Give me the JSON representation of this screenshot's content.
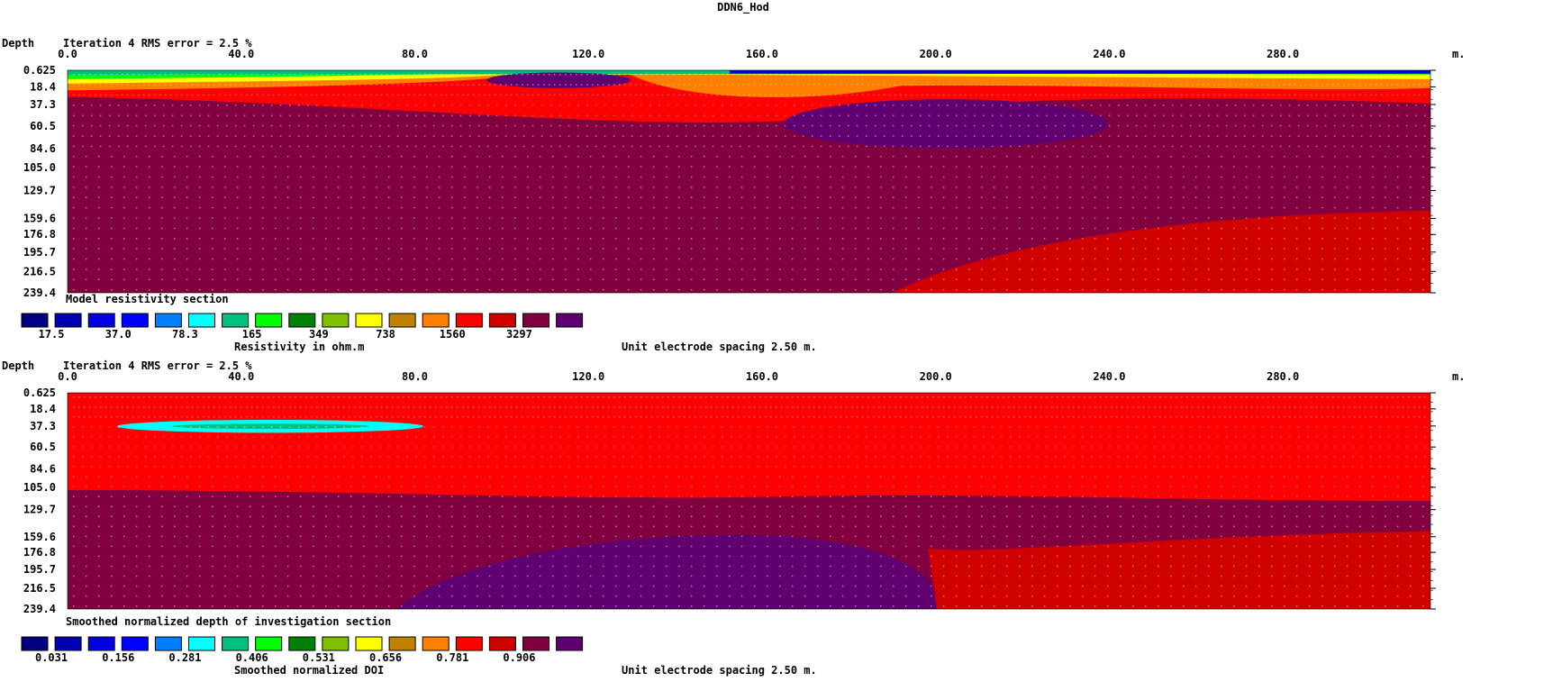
{
  "figure_title": "DDN6_Hod",
  "chart_data": [
    {
      "type": "heatmap",
      "header_left": "Depth",
      "header_iteration": "Iteration 4 RMS error = 2.5 %",
      "x_unit": "m.",
      "xlim": [
        0,
        314
      ],
      "x_ticks": [
        "0.0",
        "40.0",
        "80.0",
        "120.0",
        "160.0",
        "200.0",
        "240.0",
        "280.0"
      ],
      "x_tick_values": [
        0,
        40,
        80,
        120,
        160,
        200,
        240,
        280
      ],
      "depth_ticks": [
        "0.625",
        "18.4",
        "37.3",
        "60.5",
        "84.6",
        "105.0",
        "129.7",
        "159.6",
        "176.8",
        "195.7",
        "216.5",
        "239.4"
      ],
      "depth_values": [
        0.625,
        18.4,
        37.3,
        60.5,
        84.6,
        105.0,
        129.7,
        159.6,
        176.8,
        195.7,
        216.5,
        239.4
      ],
      "section_label": "Model resistivity section",
      "scale_labels": [
        "17.5",
        "37.0",
        "78.3",
        "165",
        "349",
        "738",
        "1560",
        "3297"
      ],
      "scale_title": "Resistivity in ohm.m",
      "spacing_note": "Unit electrode spacing 2.50 m."
    },
    {
      "type": "heatmap",
      "header_left": "Depth",
      "header_iteration": "Iteration 4 RMS error = 2.5 %",
      "x_unit": "m.",
      "xlim": [
        0,
        314
      ],
      "x_ticks": [
        "0.0",
        "40.0",
        "80.0",
        "120.0",
        "160.0",
        "200.0",
        "240.0",
        "280.0"
      ],
      "x_tick_values": [
        0,
        40,
        80,
        120,
        160,
        200,
        240,
        280
      ],
      "depth_ticks": [
        "0.625",
        "18.4",
        "37.3",
        "60.5",
        "84.6",
        "105.0",
        "129.7",
        "159.6",
        "176.8",
        "195.7",
        "216.5",
        "239.4"
      ],
      "depth_values": [
        0.625,
        18.4,
        37.3,
        60.5,
        84.6,
        105.0,
        129.7,
        159.6,
        176.8,
        195.7,
        216.5,
        239.4
      ],
      "section_label": "Smoothed normalized depth of investigation section",
      "scale_labels": [
        "0.031",
        "0.156",
        "0.281",
        "0.406",
        "0.531",
        "0.656",
        "0.781",
        "0.906"
      ],
      "scale_title": "Smoothed normalized DOI",
      "spacing_note": "Unit electrode spacing 2.50 m."
    }
  ],
  "palette": [
    "#000080",
    "#0000b0",
    "#0000e0",
    "#0000ff",
    "#0080ff",
    "#00ffff",
    "#00c080",
    "#00ff00",
    "#008000",
    "#80c000",
    "#ffff00",
    "#c08000",
    "#ff8000",
    "#ff0000",
    "#d00000",
    "#800040",
    "#600070"
  ]
}
